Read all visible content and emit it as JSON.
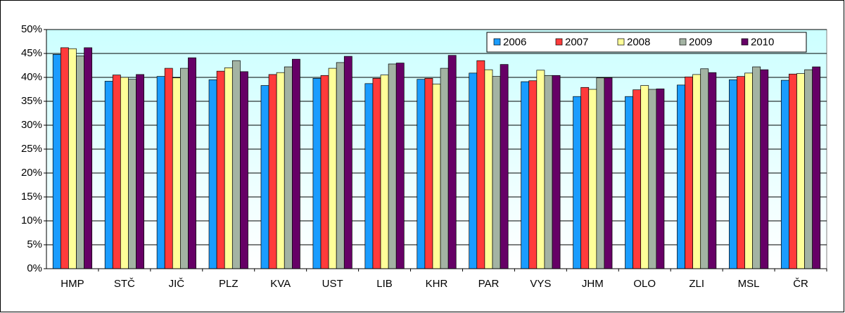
{
  "chart_data": {
    "type": "bar",
    "categories": [
      "HMP",
      "STČ",
      "JIČ",
      "PLZ",
      "KVA",
      "UST",
      "LIB",
      "KHR",
      "PAR",
      "VYS",
      "JHM",
      "OLO",
      "ZLI",
      "MSL",
      "ČR"
    ],
    "series": [
      {
        "name": "2006",
        "color": "#1a9cff",
        "values": [
          44.8,
          39.2,
          40.2,
          39.5,
          38.3,
          39.8,
          38.7,
          39.6,
          40.9,
          39.1,
          36.0,
          36.0,
          38.4,
          39.5,
          39.4
        ]
      },
      {
        "name": "2007",
        "color": "#ff3b3b",
        "values": [
          46.2,
          40.5,
          41.9,
          41.3,
          40.6,
          40.4,
          39.8,
          39.8,
          43.5,
          39.3,
          37.9,
          37.4,
          40.1,
          40.2,
          40.7
        ]
      },
      {
        "name": "2008",
        "color": "#ffff99",
        "values": [
          46.0,
          40.0,
          39.9,
          42.0,
          41.0,
          41.9,
          40.5,
          38.6,
          41.6,
          41.5,
          37.5,
          38.3,
          40.6,
          40.9,
          40.8
        ]
      },
      {
        "name": "2009",
        "color": "#a3b3a3",
        "values": [
          44.5,
          39.6,
          41.9,
          43.5,
          42.2,
          43.1,
          42.8,
          41.9,
          40.2,
          40.4,
          39.9,
          37.5,
          41.8,
          42.2,
          41.6
        ]
      },
      {
        "name": "2010",
        "color": "#660066",
        "values": [
          46.2,
          40.6,
          44.1,
          41.2,
          43.8,
          44.4,
          43.0,
          44.6,
          42.7,
          40.4,
          39.9,
          37.6,
          41.0,
          41.6,
          42.2
        ]
      }
    ],
    "ylim": [
      0,
      50
    ],
    "yticks": [
      {
        "value": 0,
        "label": "0%"
      },
      {
        "value": 5,
        "label": "5%"
      },
      {
        "value": 10,
        "label": "10%"
      },
      {
        "value": 15,
        "label": "15%"
      },
      {
        "value": 20,
        "label": "20%"
      },
      {
        "value": 25,
        "label": "25%"
      },
      {
        "value": 30,
        "label": "30%"
      },
      {
        "value": 35,
        "label": "35%"
      },
      {
        "value": 40,
        "label": "40%"
      },
      {
        "value": 45,
        "label": "45%"
      },
      {
        "value": 50,
        "label": "50%"
      }
    ],
    "grid": true,
    "legend": "upper right"
  }
}
